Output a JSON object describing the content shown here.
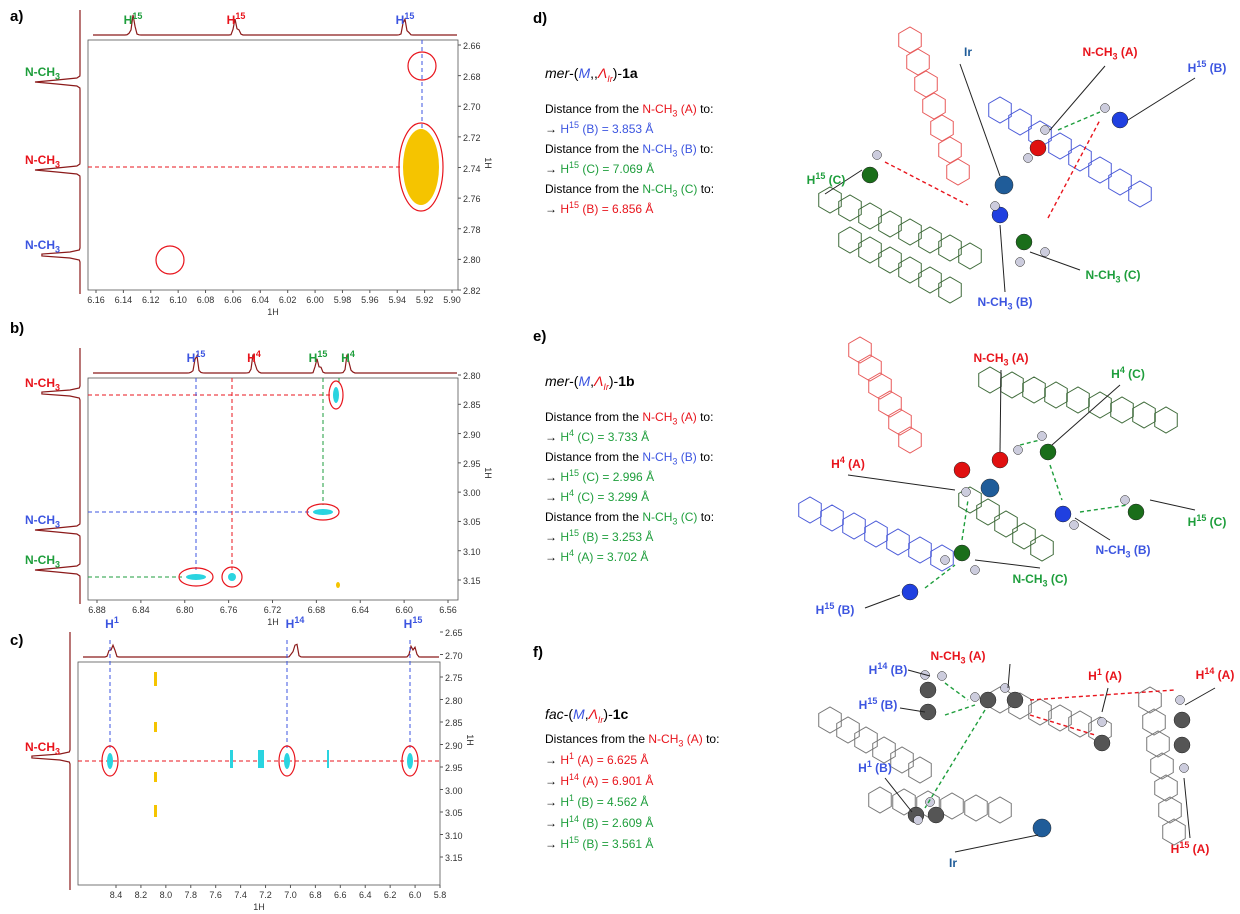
{
  "panels": [
    {
      "label": "a)",
      "x_axis_title": "1H",
      "y_axis_title": "1H",
      "x_ticks": [
        "6.16",
        "6.14",
        "6.12",
        "6.10",
        "6.08",
        "6.06",
        "6.04",
        "6.02",
        "6.00",
        "5.98",
        "5.96",
        "5.94",
        "5.92",
        "5.90"
      ],
      "y_ticks": [
        "2.66",
        "2.68",
        "2.70",
        "2.72",
        "2.74",
        "2.76",
        "2.78",
        "2.80",
        "2.82"
      ],
      "top_labels": [
        {
          "text": "H",
          "sup": "15",
          "color": "green"
        },
        {
          "text": "H",
          "sup": "15",
          "color": "red"
        },
        {
          "text": "H",
          "sup": "15",
          "color": "blue"
        }
      ],
      "side_labels": [
        {
          "text": "N-CH",
          "sub": "3",
          "color": "green"
        },
        {
          "text": "N-CH",
          "sub": "3",
          "color": "red"
        },
        {
          "text": "N-CH",
          "sub": "3",
          "color": "blue"
        }
      ]
    },
    {
      "label": "b)",
      "x_axis_title": "1H",
      "y_axis_title": "1H",
      "x_ticks": [
        "6.88",
        "6.84",
        "6.80",
        "6.76",
        "6.72",
        "6.68",
        "6.64",
        "6.60",
        "6.56"
      ],
      "y_ticks": [
        "2.80",
        "2.85",
        "2.90",
        "2.95",
        "3.00",
        "3.05",
        "3.10",
        "3.15"
      ],
      "top_labels": [
        {
          "text": "H",
          "sup": "15",
          "color": "blue"
        },
        {
          "text": "H",
          "sup": "4",
          "color": "red"
        },
        {
          "text": "H",
          "sup": "15",
          "color": "green"
        },
        {
          "text": "H",
          "sup": "4",
          "color": "green"
        }
      ],
      "side_labels": [
        {
          "text": "N-CH",
          "sub": "3",
          "color": "red"
        },
        {
          "text": "N-CH",
          "sub": "3",
          "color": "blue"
        },
        {
          "text": "N-CH",
          "sub": "3",
          "color": "green"
        }
      ]
    },
    {
      "label": "c)",
      "x_axis_title": "1H",
      "y_axis_title": "1H",
      "x_ticks": [
        "8.4",
        "8.2",
        "8.0",
        "7.8",
        "7.6",
        "7.4",
        "7.2",
        "7.0",
        "6.8",
        "6.6",
        "6.4",
        "6.2",
        "6.0",
        "5.8"
      ],
      "y_ticks": [
        "2.65",
        "2.70",
        "2.75",
        "2.80",
        "2.85",
        "2.90",
        "2.95",
        "3.00",
        "3.05",
        "3.10",
        "3.15"
      ],
      "top_labels": [
        {
          "text": "H",
          "sup": "1",
          "color": "blue"
        },
        {
          "text": "H",
          "sup": "14",
          "color": "blue"
        },
        {
          "text": "H",
          "sup": "15",
          "color": "blue"
        }
      ],
      "side_labels": [
        {
          "text": "N-CH",
          "sub": "3",
          "color": "red"
        }
      ]
    }
  ],
  "structures": [
    {
      "label": "d)",
      "title": [
        {
          "text": "mer",
          "italic": true
        },
        {
          "text": "-("
        },
        {
          "text": "M",
          "italic": true,
          "color": "blue"
        },
        {
          "text": ",,"
        },
        {
          "text": "Λ",
          "italic": true,
          "color": "red",
          "sub": "Ir"
        },
        {
          "text": ")-"
        },
        {
          "text": "1a",
          "bold": true
        }
      ],
      "lines": [
        [
          {
            "text": "Distance from the "
          },
          {
            "text": "N-CH",
            "sub": "3",
            "color": "red"
          },
          {
            "text": " (A)",
            "color": "red"
          },
          {
            "text": " to:"
          }
        ],
        [
          {
            "text": "→ "
          },
          {
            "text": "H",
            "sup": "15",
            "color": "blue"
          },
          {
            "text": " (B) = 3.853 Å",
            "color": "blue"
          }
        ],
        [
          {
            "text": "Distance from the "
          },
          {
            "text": "N-CH",
            "sub": "3",
            "color": "blue"
          },
          {
            "text": " (B)",
            "color": "blue"
          },
          {
            "text": " to:"
          }
        ],
        [
          {
            "text": "→ "
          },
          {
            "text": "H",
            "sup": "15",
            "color": "green"
          },
          {
            "text": " (C) = 7.069 Å",
            "color": "green"
          }
        ],
        [
          {
            "text": "Distance from the "
          },
          {
            "text": "N-CH",
            "sub": "3",
            "color": "green"
          },
          {
            "text": " (C)",
            "color": "green"
          },
          {
            "text": " to:"
          }
        ],
        [
          {
            "text": "→ "
          },
          {
            "text": "H",
            "sup": "15",
            "color": "red"
          },
          {
            "text": " (B) = 6.856 Å",
            "color": "red"
          }
        ]
      ],
      "atom_labels": [
        [
          {
            "text": "Ir",
            "color": "ir"
          }
        ],
        [
          {
            "text": "N-CH",
            "sub": "3",
            "color": "red"
          },
          {
            "text": " (A)",
            "color": "red"
          }
        ],
        [
          {
            "text": "H",
            "sup": "15",
            "color": "blue"
          },
          {
            "text": " (B)",
            "color": "blue"
          }
        ],
        [
          {
            "text": "H",
            "sup": "15",
            "color": "green"
          },
          {
            "text": " (C)",
            "color": "green"
          }
        ],
        [
          {
            "text": "N-CH",
            "sub": "3",
            "color": "green"
          },
          {
            "text": " (C)",
            "color": "green"
          }
        ],
        [
          {
            "text": "N-CH",
            "sub": "3",
            "color": "blue"
          },
          {
            "text": " (B)",
            "color": "blue"
          }
        ]
      ]
    },
    {
      "label": "e)",
      "title": [
        {
          "text": "mer",
          "italic": true
        },
        {
          "text": "-("
        },
        {
          "text": "M",
          "italic": true,
          "color": "blue"
        },
        {
          "text": ","
        },
        {
          "text": "Λ",
          "italic": true,
          "color": "red",
          "sub": "Ir"
        },
        {
          "text": ")-"
        },
        {
          "text": "1b",
          "bold": true
        }
      ],
      "lines": [
        [
          {
            "text": "Distance from the "
          },
          {
            "text": "N-CH",
            "sub": "3",
            "color": "red"
          },
          {
            "text": " (A)",
            "color": "red"
          },
          {
            "text": " to:"
          }
        ],
        [
          {
            "text": "→ "
          },
          {
            "text": "H",
            "sup": "4",
            "color": "green"
          },
          {
            "text": " (C) = 3.733 Å",
            "color": "green"
          }
        ],
        [
          {
            "text": "Distance from the "
          },
          {
            "text": "N-CH",
            "sub": "3",
            "color": "blue"
          },
          {
            "text": " (B)",
            "color": "blue"
          },
          {
            "text": " to:"
          }
        ],
        [
          {
            "text": "→ "
          },
          {
            "text": "H",
            "sup": "15",
            "color": "green"
          },
          {
            "text": " (C) = 2.996 Å",
            "color": "green"
          }
        ],
        [
          {
            "text": "→ "
          },
          {
            "text": "H",
            "sup": "4",
            "color": "green"
          },
          {
            "text": " (C) = 3.299 Å",
            "color": "green"
          }
        ],
        [
          {
            "text": "Distance from the "
          },
          {
            "text": "N-CH",
            "sub": "3",
            "color": "green"
          },
          {
            "text": " (C)",
            "color": "green"
          },
          {
            "text": " to:"
          }
        ],
        [
          {
            "text": "→ "
          },
          {
            "text": "H",
            "sup": "15",
            "color": "green"
          },
          {
            "text": " (B) = 3.253 Å",
            "color": "green"
          }
        ],
        [
          {
            "text": "→ "
          },
          {
            "text": "H",
            "sup": "4",
            "color": "green"
          },
          {
            "text": " (A) = 3.702 Å",
            "color": "green"
          }
        ]
      ],
      "atom_labels": [
        [
          {
            "text": "N-CH",
            "sub": "3",
            "color": "red"
          },
          {
            "text": " (A)",
            "color": "red"
          }
        ],
        [
          {
            "text": "H",
            "sup": "4",
            "color": "green"
          },
          {
            "text": " (C)",
            "color": "green"
          }
        ],
        [
          {
            "text": "H",
            "sup": "4",
            "color": "red"
          },
          {
            "text": " (A)",
            "color": "red"
          }
        ],
        [
          {
            "text": "H",
            "sup": "15",
            "color": "green"
          },
          {
            "text": " (C)",
            "color": "green"
          }
        ],
        [
          {
            "text": "N-CH",
            "sub": "3",
            "color": "blue"
          },
          {
            "text": " (B)",
            "color": "blue"
          }
        ],
        [
          {
            "text": "N-CH",
            "sub": "3",
            "color": "green"
          },
          {
            "text": " (C)",
            "color": "green"
          }
        ],
        [
          {
            "text": "H",
            "sup": "15",
            "color": "blue"
          },
          {
            "text": " (B)",
            "color": "blue"
          }
        ]
      ]
    },
    {
      "label": "f)",
      "title": [
        {
          "text": "fac",
          "italic": true
        },
        {
          "text": "-("
        },
        {
          "text": "M",
          "italic": true,
          "color": "blue"
        },
        {
          "text": ","
        },
        {
          "text": "Λ",
          "italic": true,
          "color": "red",
          "sub": "Ir"
        },
        {
          "text": ")-"
        },
        {
          "text": "1c",
          "bold": true
        }
      ],
      "lines": [
        [
          {
            "text": "Distances from the "
          },
          {
            "text": "N-CH",
            "sub": "3",
            "color": "red"
          },
          {
            "text": " (A)",
            "color": "red"
          },
          {
            "text": " to:"
          }
        ],
        [
          {
            "text": "→ "
          },
          {
            "text": "H",
            "sup": "1",
            "color": "red"
          },
          {
            "text": " (A) = 6.625 Å",
            "color": "red"
          }
        ],
        [
          {
            "text": "→ "
          },
          {
            "text": "H",
            "sup": "14",
            "color": "red"
          },
          {
            "text": " (A) = 6.901 Å",
            "color": "red"
          }
        ],
        [
          {
            "text": "→ "
          },
          {
            "text": "H",
            "sup": "1",
            "color": "green"
          },
          {
            "text": " (B) = 4.562 Å",
            "color": "green"
          }
        ],
        [
          {
            "text": "→ "
          },
          {
            "text": "H",
            "sup": "14",
            "color": "green"
          },
          {
            "text": " (B) = 2.609 Å",
            "color": "green"
          }
        ],
        [
          {
            "text": "→ "
          },
          {
            "text": "H",
            "sup": "15",
            "color": "green"
          },
          {
            "text": " (B) = 3.561 Å",
            "color": "green"
          }
        ]
      ],
      "atom_labels": [
        [
          {
            "text": "H",
            "sup": "14",
            "color": "blue"
          },
          {
            "text": " (B)",
            "color": "blue"
          }
        ],
        [
          {
            "text": "N-CH",
            "sub": "3",
            "color": "red"
          },
          {
            "text": " (A)",
            "color": "red"
          }
        ],
        [
          {
            "text": "H",
            "sup": "15",
            "color": "blue"
          },
          {
            "text": " (B)",
            "color": "blue"
          }
        ],
        [
          {
            "text": "H",
            "sup": "1",
            "color": "red"
          },
          {
            "text": " (A)",
            "color": "red"
          }
        ],
        [
          {
            "text": "H",
            "sup": "14",
            "color": "red"
          },
          {
            "text": " (A)",
            "color": "red"
          }
        ],
        [
          {
            "text": "H",
            "sup": "1",
            "color": "blue"
          },
          {
            "text": " (B)",
            "color": "blue"
          }
        ],
        [
          {
            "text": "Ir",
            "color": "ir"
          }
        ],
        [
          {
            "text": "H",
            "sup": "15",
            "color": "red"
          },
          {
            "text": " (A)",
            "color": "red"
          }
        ]
      ]
    }
  ]
}
